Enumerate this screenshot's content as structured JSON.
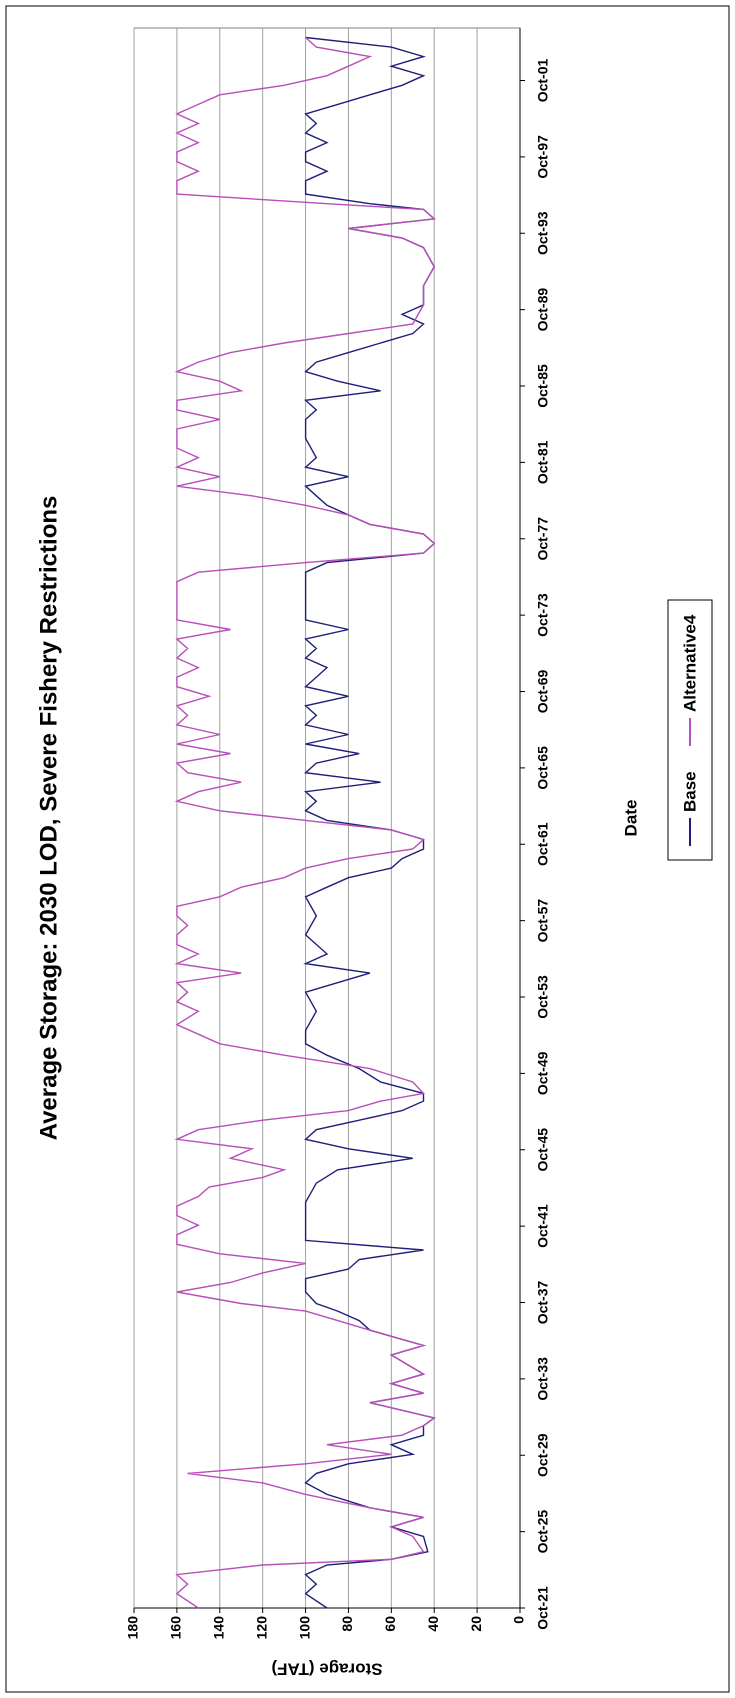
{
  "chart_data": {
    "type": "line",
    "title": "Average Storage: 2030 LOD, Severe Fishery Restrictions",
    "xlabel": "Date",
    "ylabel": "Storage (TAF)",
    "xlim": [
      1921.75,
      2004.5
    ],
    "xticks": [
      {
        "value": 1921.75,
        "label": "Oct-21"
      },
      {
        "value": 1925.75,
        "label": "Oct-25"
      },
      {
        "value": 1929.75,
        "label": "Oct-29"
      },
      {
        "value": 1933.75,
        "label": "Oct-33"
      },
      {
        "value": 1937.75,
        "label": "Oct-37"
      },
      {
        "value": 1941.75,
        "label": "Oct-41"
      },
      {
        "value": 1945.75,
        "label": "Oct-45"
      },
      {
        "value": 1949.75,
        "label": "Oct-49"
      },
      {
        "value": 1953.75,
        "label": "Oct-53"
      },
      {
        "value": 1957.75,
        "label": "Oct-57"
      },
      {
        "value": 1961.75,
        "label": "Oct-61"
      },
      {
        "value": 1965.75,
        "label": "Oct-65"
      },
      {
        "value": 1969.75,
        "label": "Oct-69"
      },
      {
        "value": 1973.75,
        "label": "Oct-73"
      },
      {
        "value": 1977.75,
        "label": "Oct-77"
      },
      {
        "value": 1981.75,
        "label": "Oct-81"
      },
      {
        "value": 1985.75,
        "label": "Oct-85"
      },
      {
        "value": 1989.75,
        "label": "Oct-89"
      },
      {
        "value": 1993.75,
        "label": "Oct-93"
      },
      {
        "value": 1997.75,
        "label": "Oct-97"
      },
      {
        "value": 2001.75,
        "label": "Oct-01"
      }
    ],
    "ylim": [
      0,
      180
    ],
    "yticks": [
      0,
      20,
      40,
      60,
      80,
      100,
      120,
      140,
      160,
      180
    ],
    "grid": true,
    "series": [
      {
        "name": "Base",
        "color": "#1f1f7a",
        "x": [
          1921.75,
          1922.5,
          1923,
          1923.5,
          1924,
          1924.3,
          1924.7,
          1925.5,
          1926,
          1926.5,
          1927,
          1927.7,
          1928.3,
          1928.8,
          1929.3,
          1929.8,
          1930.3,
          1930.8,
          1931.3,
          1931.7,
          1932.5,
          1933,
          1933.5,
          1934,
          1935,
          1935.5,
          1936.3,
          1936.8,
          1937.3,
          1937.7,
          1938.3,
          1939,
          1939.5,
          1940,
          1940.5,
          1941,
          1942,
          1943,
          1944,
          1944.7,
          1945.3,
          1945.8,
          1946.3,
          1946.8,
          1947.3,
          1947.8,
          1948.3,
          1948.7,
          1949.3,
          1950,
          1950.7,
          1951.3,
          1952,
          1953,
          1954,
          1955,
          1955.5,
          1956,
          1957,
          1958,
          1959,
          1959.5,
          1960,
          1960.5,
          1961,
          1961.5,
          1962,
          1962.5,
          1963,
          1963.5,
          1964,
          1964.5,
          1965,
          1965.5,
          1966,
          1966.5,
          1967,
          1967.5,
          1968,
          1968.5,
          1969,
          1969.5,
          1970,
          1971,
          1971.5,
          1972,
          1972.5,
          1973,
          1973.5,
          1974,
          1975,
          1976,
          1976.5,
          1977,
          1977.5,
          1978,
          1978.5,
          1979,
          1979.5,
          1980,
          1980.5,
          1981,
          1981.5,
          1982,
          1983,
          1984,
          1984.5,
          1985,
          1985.5,
          1986,
          1986.5,
          1987,
          1987.5,
          1988,
          1988.5,
          1989,
          1989.5,
          1990,
          1991,
          1992,
          1993,
          1993.5,
          1994,
          1994.5,
          1995,
          1995.3,
          1995.8,
          1996.5,
          1997,
          1997.5,
          1998,
          1998.5,
          1999,
          1999.5,
          2000,
          2000.5,
          2001,
          2001.5,
          2002,
          2002.5,
          2003,
          2003.5,
          2004
        ],
        "values": [
          90,
          100,
          95,
          100,
          90,
          60,
          43,
          45,
          60,
          45,
          70,
          90,
          100,
          95,
          80,
          50,
          60,
          45,
          45,
          40,
          70,
          45,
          60,
          45,
          60,
          45,
          70,
          75,
          85,
          95,
          100,
          100,
          80,
          75,
          45,
          100,
          100,
          100,
          95,
          85,
          50,
          80,
          100,
          95,
          75,
          55,
          45,
          45,
          65,
          75,
          90,
          100,
          100,
          95,
          100,
          70,
          100,
          90,
          100,
          95,
          100,
          90,
          80,
          60,
          55,
          45,
          45,
          60,
          90,
          100,
          95,
          100,
          65,
          100,
          95,
          75,
          100,
          80,
          100,
          95,
          100,
          80,
          100,
          90,
          100,
          95,
          100,
          80,
          100,
          100,
          100,
          100,
          90,
          45,
          40,
          45,
          70,
          80,
          90,
          95,
          100,
          80,
          100,
          95,
          100,
          100,
          95,
          100,
          65,
          85,
          100,
          95,
          80,
          65,
          50,
          45,
          55,
          45,
          45,
          40,
          45,
          55,
          80,
          40,
          45,
          70,
          100,
          100,
          90,
          100,
          100,
          90,
          100,
          95,
          100,
          85,
          70,
          55,
          45,
          60,
          45,
          60,
          100
        ]
      },
      {
        "name": "Alternative4",
        "color": "#b84fb8",
        "x": [
          1921.75,
          1922.5,
          1923,
          1923.5,
          1924,
          1924.3,
          1924.7,
          1925.5,
          1926,
          1926.5,
          1927,
          1927.7,
          1928.3,
          1928.8,
          1929.3,
          1929.8,
          1930.3,
          1930.8,
          1931.3,
          1931.7,
          1932.5,
          1933,
          1933.5,
          1934,
          1935,
          1935.5,
          1936.3,
          1936.8,
          1937.3,
          1937.7,
          1938.3,
          1938.8,
          1939.3,
          1939.8,
          1940.3,
          1940.8,
          1941.3,
          1941.8,
          1942.3,
          1942.8,
          1943.3,
          1943.8,
          1944.3,
          1944.7,
          1945.3,
          1945.8,
          1946.3,
          1946.8,
          1947.3,
          1947.8,
          1948.3,
          1948.7,
          1949.3,
          1950,
          1950.7,
          1951.3,
          1951.8,
          1952.3,
          1953,
          1953.5,
          1954,
          1954.5,
          1955,
          1955.5,
          1956,
          1956.5,
          1957,
          1957.5,
          1958,
          1958.5,
          1959,
          1959.5,
          1960,
          1960.5,
          1961,
          1961.5,
          1962,
          1962.5,
          1963,
          1963.5,
          1964,
          1964.5,
          1965,
          1965.5,
          1966,
          1966.5,
          1967,
          1967.5,
          1968,
          1968.5,
          1969,
          1969.5,
          1970,
          1970.5,
          1971,
          1971.5,
          1972,
          1972.5,
          1973,
          1973.5,
          1974,
          1975,
          1975.5,
          1976,
          1976.5,
          1977,
          1977.5,
          1978,
          1978.5,
          1979,
          1979.5,
          1980,
          1980.5,
          1981,
          1981.5,
          1982,
          1982.5,
          1983,
          1983.5,
          1984,
          1984.5,
          1985,
          1985.5,
          1986,
          1986.5,
          1987,
          1987.5,
          1988,
          1988.5,
          1989,
          1990,
          1991,
          1992,
          1993,
          1993.5,
          1994,
          1994.5,
          1995,
          1995.3,
          1995.8,
          1996.5,
          1997,
          1997.5,
          1998,
          1998.5,
          1999,
          1999.5,
          2000,
          2000.5,
          2001,
          2001.5,
          2002,
          2002.5,
          2003,
          2003.5,
          2004
        ],
        "values": [
          150,
          160,
          155,
          160,
          120,
          60,
          45,
          50,
          60,
          45,
          70,
          100,
          120,
          155,
          100,
          60,
          90,
          55,
          45,
          40,
          70,
          45,
          60,
          45,
          60,
          45,
          70,
          85,
          100,
          130,
          160,
          135,
          120,
          100,
          140,
          160,
          160,
          150,
          160,
          160,
          150,
          145,
          120,
          110,
          135,
          125,
          160,
          150,
          120,
          80,
          65,
          45,
          50,
          70,
          110,
          140,
          150,
          160,
          150,
          160,
          155,
          160,
          130,
          160,
          150,
          160,
          160,
          155,
          160,
          160,
          140,
          130,
          110,
          100,
          80,
          50,
          45,
          60,
          100,
          140,
          160,
          150,
          130,
          155,
          160,
          135,
          160,
          140,
          160,
          155,
          160,
          145,
          160,
          160,
          150,
          160,
          155,
          160,
          135,
          160,
          160,
          160,
          160,
          150,
          100,
          45,
          40,
          45,
          70,
          80,
          100,
          125,
          160,
          140,
          160,
          150,
          160,
          160,
          160,
          140,
          160,
          160,
          130,
          140,
          160,
          150,
          135,
          110,
          80,
          50,
          45,
          45,
          40,
          45,
          55,
          80,
          40,
          45,
          90,
          160,
          160,
          150,
          160,
          160,
          150,
          160,
          150,
          160,
          150,
          140,
          110,
          90,
          80,
          70,
          95,
          100
        ]
      }
    ]
  }
}
